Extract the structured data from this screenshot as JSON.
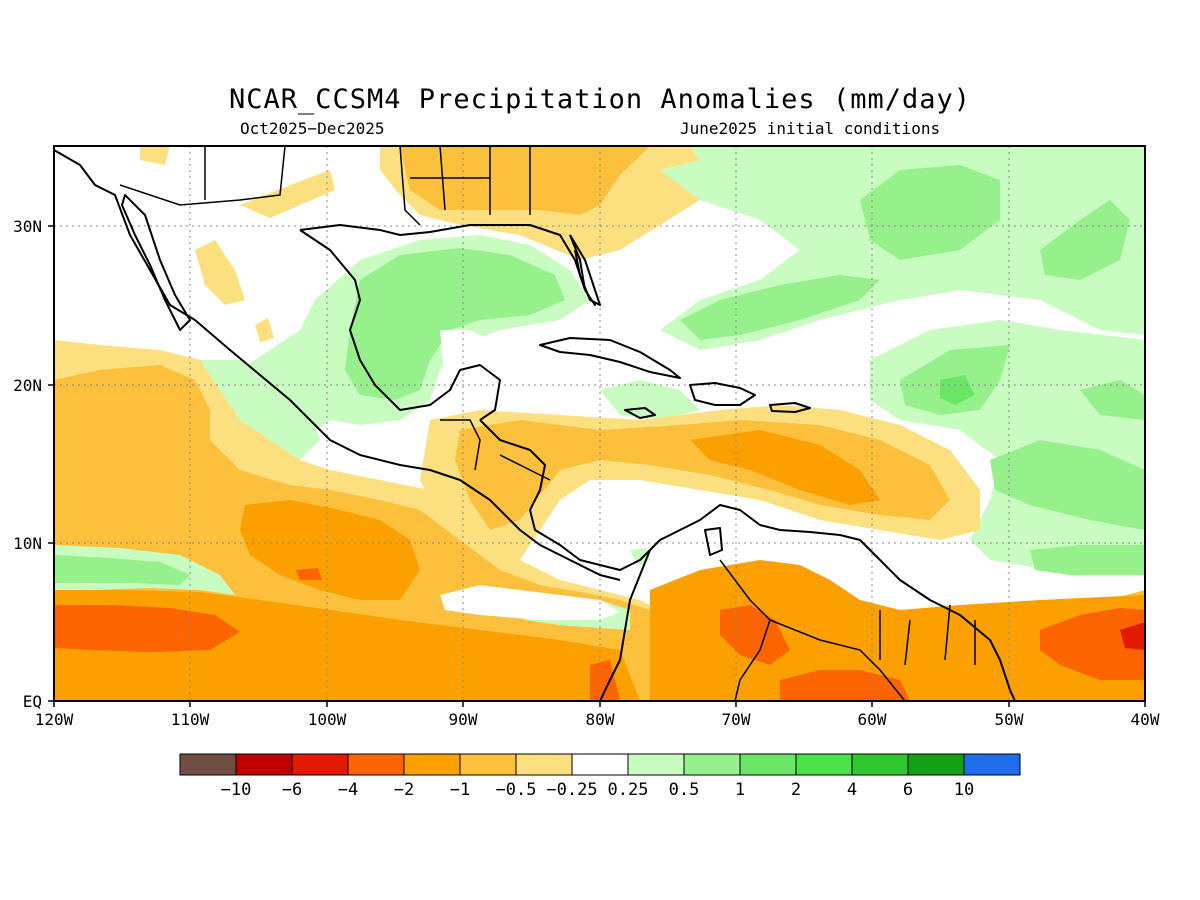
{
  "title": "NCAR_CCSM4 Precipitation Anomalies (mm/day)",
  "period": "Oct2025−Dec2025",
  "initial_conditions": "June2025 initial conditions",
  "map": {
    "projection": "lat-lon",
    "lon_range": [
      -120,
      -40
    ],
    "lat_range": [
      0,
      35
    ],
    "grid": "dotted",
    "x_ticks": [
      "120W",
      "110W",
      "100W",
      "90W",
      "80W",
      "70W",
      "60W",
      "50W",
      "40W"
    ],
    "y_ticks": [
      "EQ",
      "10N",
      "20N",
      "30N"
    ]
  },
  "colorbar": {
    "colors": [
      "#704e44",
      "#c00000",
      "#e21a00",
      "#fc6400",
      "#fca000",
      "#fcc03c",
      "#fce080",
      "#ffffff",
      "#c8fcc0",
      "#96f08c",
      "#6ae666",
      "#4ae44a",
      "#30c830",
      "#14a014",
      "#1e6eeb"
    ],
    "labels": [
      "−10",
      "−6",
      "−4",
      "−2",
      "−1",
      "−0.5",
      "−0.25",
      "0.25",
      "0.5",
      "1",
      "2",
      "4",
      "6",
      "10"
    ]
  },
  "legend_colors": {
    "neg_light": "#fce080",
    "neg_mid": "#fcc03c",
    "neg_strong": "#fca000",
    "neg_very": "#fc6400",
    "pos_light": "#c8fcc0",
    "pos_mid": "#96f08c",
    "pos_strong": "#6ae666"
  }
}
